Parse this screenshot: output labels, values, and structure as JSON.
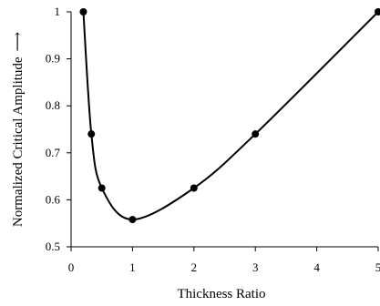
{
  "chart_data": {
    "type": "line",
    "title": "",
    "xlabel": "Thickness Ratio",
    "ylabel": "Normalized Critical Amplitude",
    "ylabel_arrow": "⟶",
    "xlim": [
      0,
      5
    ],
    "ylim": [
      0.5,
      1
    ],
    "xticks": [
      0,
      1,
      2,
      3,
      4,
      5
    ],
    "xtick_labels": [
      "0",
      "1",
      "2",
      "3",
      "4",
      "5"
    ],
    "yticks": [
      0.5,
      0.6,
      0.7,
      0.8,
      0.9,
      1
    ],
    "ytick_labels": [
      "0.5",
      "0.6",
      "0.7",
      "0.8",
      "0.9",
      "1"
    ],
    "grid": false,
    "legend": "none",
    "smooth": true,
    "line_color": "#000000",
    "marker_color": "#000000",
    "series": [
      {
        "x": [
          0.2,
          0.33,
          0.5,
          1,
          2,
          3,
          5
        ],
        "y": [
          1,
          0.74,
          0.625,
          0.558,
          0.625,
          0.74,
          1
        ]
      }
    ]
  }
}
